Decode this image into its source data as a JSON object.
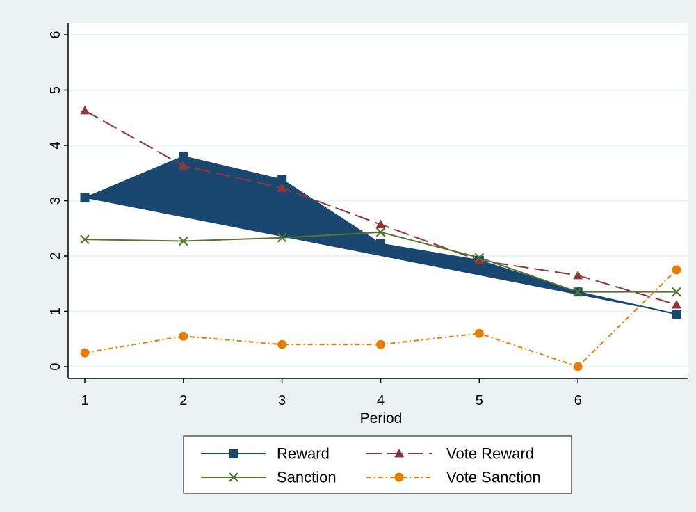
{
  "chart_data": {
    "type": "line",
    "xlabel": "Period",
    "ylabel": "",
    "x_ticks": [
      1,
      2,
      3,
      4,
      5,
      6
    ],
    "y_ticks": [
      0,
      1,
      2,
      3,
      4,
      5,
      6
    ],
    "xlim": [
      1,
      7
    ],
    "ylim": [
      0,
      6
    ],
    "grid": true,
    "legend_position": "bottom",
    "colors": {
      "outer_background": "#eaf2f3",
      "plot_background": "#ffffff",
      "grid": "#eaf2f3"
    },
    "series": [
      {
        "name": "Reward",
        "x": [
          1,
          2,
          3,
          4,
          5,
          6,
          7
        ],
        "y": [
          3.05,
          3.8,
          3.38,
          2.22,
          1.92,
          1.35,
          0.95
        ],
        "color": "#1a476f",
        "marker": "square",
        "dash": "solid",
        "filled": true
      },
      {
        "name": "Vote Reward",
        "x": [
          1,
          2,
          3,
          4,
          5,
          6,
          7
        ],
        "y": [
          4.63,
          3.63,
          3.23,
          2.57,
          1.92,
          1.65,
          1.12
        ],
        "color": "#90353b",
        "marker": "triangle",
        "dash": "long-dash"
      },
      {
        "name": "Sanction",
        "x": [
          1,
          2,
          3,
          4,
          5,
          6,
          7
        ],
        "y": [
          2.3,
          2.27,
          2.33,
          2.43,
          1.97,
          1.35,
          1.35
        ],
        "color": "#55752f",
        "marker": "x",
        "dash": "solid"
      },
      {
        "name": "Vote Sanction",
        "x": [
          1,
          2,
          3,
          4,
          5,
          6,
          7
        ],
        "y": [
          0.25,
          0.55,
          0.4,
          0.4,
          0.6,
          0.0,
          1.75
        ],
        "color": "#e37e00",
        "marker": "circle",
        "dash": "dash-dot"
      }
    ]
  }
}
